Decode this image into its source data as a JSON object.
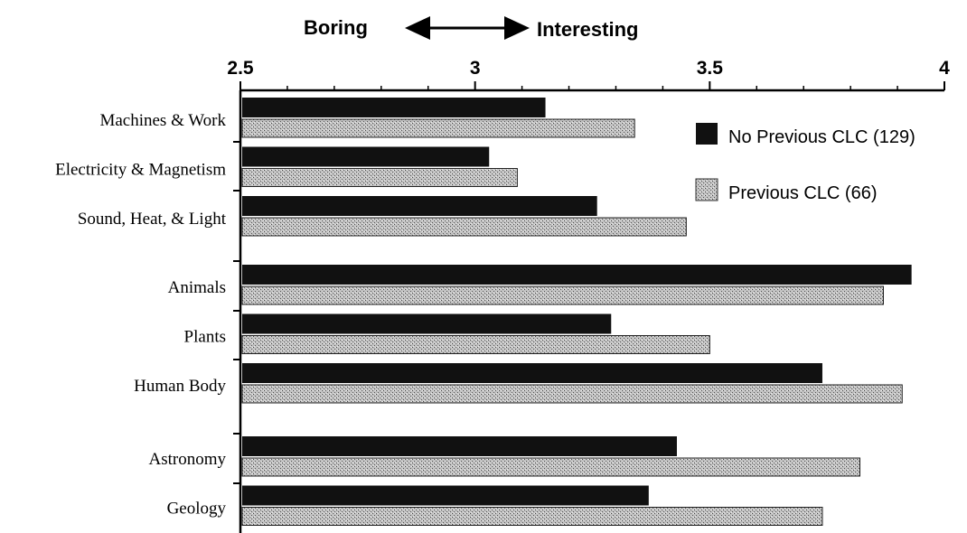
{
  "chart_data": {
    "type": "bar",
    "orientation": "horizontal",
    "scale_left_label": "Boring",
    "scale_right_label": "Interesting",
    "xlim": [
      2.5,
      4
    ],
    "xticks": [
      {
        "value": 2.5,
        "label": "2.5"
      },
      {
        "value": 3,
        "label": "3"
      },
      {
        "value": 3.5,
        "label": "3.5"
      },
      {
        "value": 4,
        "label": "4"
      }
    ],
    "categories": [
      "Machines & Work",
      "Electricity & Magnetism",
      "Sound, Heat, & Light",
      "Animals",
      "Plants",
      "Human Body",
      "Astronomy",
      "Geology"
    ],
    "groups": [
      [
        0,
        1,
        2
      ],
      [
        3,
        4,
        5
      ],
      [
        6,
        7
      ]
    ],
    "series": [
      {
        "name": "No Previous CLC (129)",
        "color": "#111111",
        "pattern": "solid",
        "values": [
          3.15,
          3.03,
          3.26,
          3.93,
          3.29,
          3.74,
          3.43,
          3.37
        ]
      },
      {
        "name": "Previous CLC (66)",
        "color": "#b8b8b8",
        "pattern": "stipple",
        "values": [
          3.34,
          3.09,
          3.45,
          3.87,
          3.5,
          3.91,
          3.82,
          3.74
        ]
      }
    ],
    "legend_position": "right",
    "grid": false
  }
}
